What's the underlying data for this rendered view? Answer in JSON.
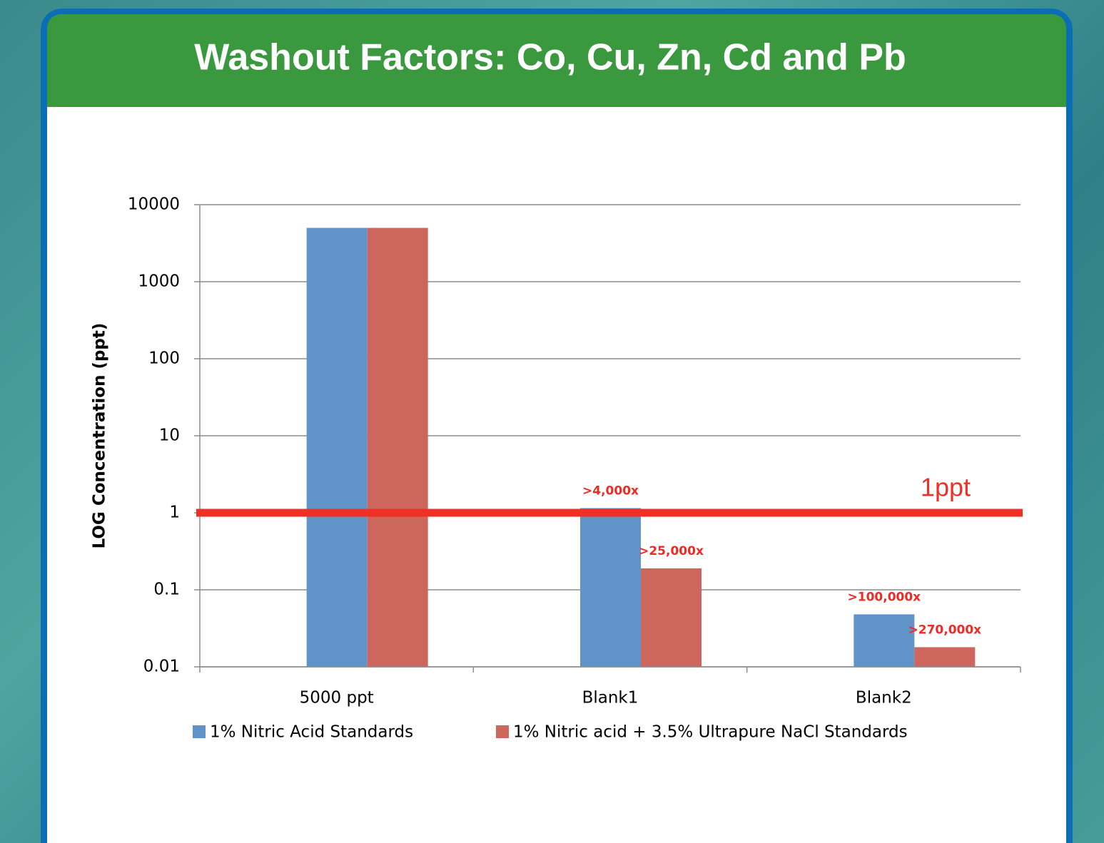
{
  "chart_data": {
    "type": "bar",
    "title": "Washout Factors: Co, Cu, Zn, Cd and Pb",
    "y_label": "LOG Concentration (ppt)",
    "categories": [
      "5000 ppt",
      "Blank1",
      "Blank2"
    ],
    "series": [
      {
        "name": "1% Nitric Acid Standards",
        "color": "#6094c9",
        "values": [
          5000,
          1.15,
          0.048
        ],
        "annotations": [
          null,
          ">4,000x",
          ">100,000x"
        ]
      },
      {
        "name": "1% Nitric acid + 3.5% Ultrapure NaCl Standards",
        "color": "#cd675e",
        "values": [
          5000,
          0.19,
          0.018
        ],
        "annotations": [
          null,
          ">25,000x",
          ">270,000x"
        ]
      }
    ],
    "log_scale": true,
    "ylim": [
      0.01,
      10000
    ],
    "yticks": [
      0.01,
      0.1,
      1,
      10,
      100,
      1000,
      10000
    ],
    "grid": true,
    "legend": "bottom",
    "reference_line": {
      "value": 1,
      "label": "1ppt",
      "color": "#ee3124"
    }
  }
}
